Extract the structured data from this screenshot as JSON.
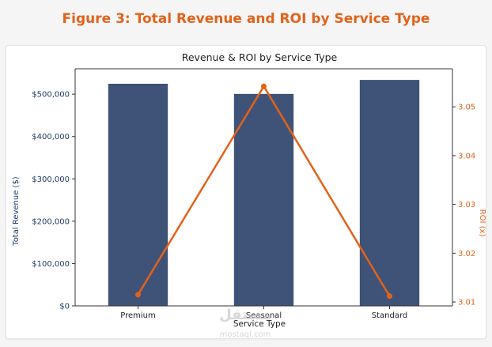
{
  "figure_title": "Figure 3: Total Revenue and ROI by Service Type",
  "watermark": {
    "main": "مستقل",
    "sub": "mostaql.com"
  },
  "colors": {
    "accent": "#e2621a",
    "bar": "#3f5379",
    "axis_left": "#1f3a66"
  },
  "chart_data": {
    "type": "bar",
    "title": "Revenue & ROI by Service Type",
    "xlabel": "Service Type",
    "ylabel": "Total Revenue ($)",
    "ylabel_right": "ROI (x)",
    "categories": [
      "Premium",
      "Seasonal",
      "Standard"
    ],
    "series": [
      {
        "type": "bar",
        "axis": "left",
        "values": [
          524000,
          500000,
          533000
        ]
      },
      {
        "type": "line",
        "axis": "right",
        "values": [
          3.0115,
          3.0542,
          3.0112
        ]
      }
    ],
    "ylim": [
      0,
      560000
    ],
    "ylim_right": [
      3.0092,
      3.0578
    ],
    "yticks": [
      "$0",
      "$100,000",
      "$200,000",
      "$300,000",
      "$400,000",
      "$500,000"
    ],
    "yticks_values": [
      0,
      100000,
      200000,
      300000,
      400000,
      500000
    ],
    "yticks_right": [
      "3.01",
      "3.02",
      "3.03",
      "3.04",
      "3.05"
    ],
    "yticks_right_values": [
      3.01,
      3.02,
      3.03,
      3.04,
      3.05
    ],
    "grid": false
  }
}
